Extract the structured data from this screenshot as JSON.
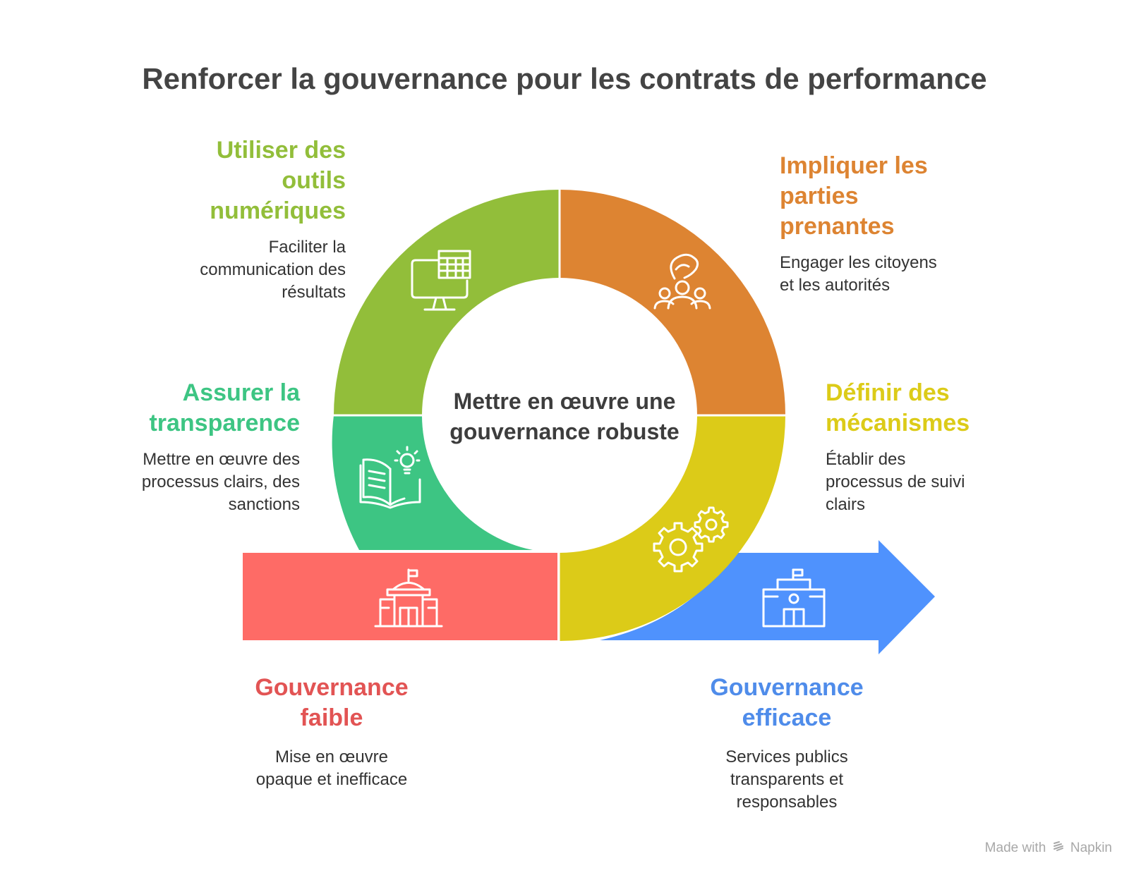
{
  "title": "Renforcer la gouvernance pour les contrats de performance",
  "center": {
    "line1": "Mettre en œuvre une",
    "line2": "gouvernance robuste"
  },
  "steps": [
    {
      "heading_lines": [
        "Utiliser des",
        "outils",
        "numériques"
      ],
      "desc_lines": [
        "Faciliter la",
        "communication des",
        "résultats"
      ],
      "color": "#92be3a",
      "icon": "computer-spreadsheet-icon"
    },
    {
      "heading_lines": [
        "Impliquer les",
        "parties",
        "prenantes"
      ],
      "desc_lines": [
        "Engager les citoyens",
        "et les autorités"
      ],
      "color": "#dd8432",
      "icon": "hand-people-icon"
    },
    {
      "heading_lines": [
        "Assurer la",
        "transparence"
      ],
      "desc_lines": [
        "Mettre en œuvre des",
        "processus clairs, des",
        "sanctions"
      ],
      "color": "#3dc583",
      "icon": "book-lightbulb-icon"
    },
    {
      "heading_lines": [
        "Définir des",
        "mécanismes"
      ],
      "desc_lines": [
        "Établir des",
        "processus de suivi",
        "clairs"
      ],
      "color": "#dccb18",
      "icon": "gears-icon"
    }
  ],
  "start": {
    "heading_lines": [
      "Gouvernance",
      "faible"
    ],
    "desc_lines": [
      "Mise en œuvre",
      "opaque et inefficace"
    ],
    "color": "#fe6b66",
    "heading_color": "#e25454",
    "icon": "government-building-icon"
  },
  "end": {
    "heading_lines": [
      "Gouvernance",
      "efficace"
    ],
    "desc_lines": [
      "Services publics",
      "transparents et",
      "responsables"
    ],
    "color": "#4f92fd",
    "heading_color": "#4f8cea",
    "icon": "school-building-icon"
  },
  "footer": {
    "made_with": "Made with",
    "brand": "Napkin"
  }
}
